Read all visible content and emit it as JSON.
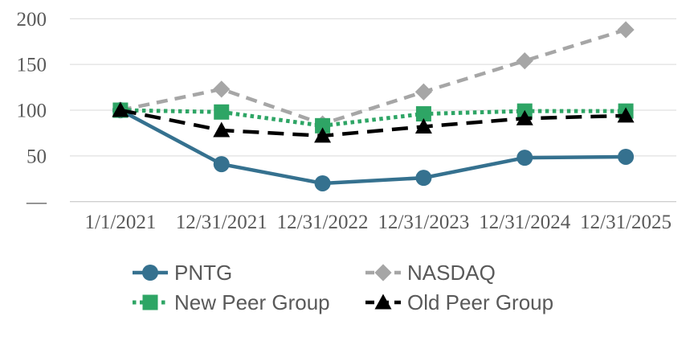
{
  "chart_data": {
    "type": "line",
    "title": "",
    "xlabel": "",
    "ylabel": "",
    "categories": [
      "1/1/2021",
      "12/31/2021",
      "12/31/2022",
      "12/31/2023",
      "12/31/2024",
      "12/31/2025"
    ],
    "series": [
      {
        "name": "PNTG",
        "color": "#35718F",
        "marker": "circle",
        "line_style": "solid",
        "values": [
          100,
          41,
          20,
          26,
          48,
          49
        ]
      },
      {
        "name": "NASDAQ",
        "color": "#A6A6A6",
        "marker": "diamond",
        "line_style": "dashed",
        "values": [
          100,
          123,
          85,
          120,
          154,
          188
        ]
      },
      {
        "name": "New Peer Group",
        "color": "#2EA565",
        "marker": "square",
        "line_style": "dotted",
        "values": [
          100,
          98,
          83,
          96,
          99,
          99
        ]
      },
      {
        "name": "Old Peer Group",
        "color": "#000000",
        "marker": "triangle",
        "line_style": "long_dash",
        "values": [
          100,
          78,
          72,
          82,
          91,
          94
        ]
      }
    ],
    "y_axis": {
      "min": 0,
      "max": 200,
      "tick_interval": 50,
      "ticks": [
        {
          "value": 200,
          "label": "200"
        },
        {
          "value": 150,
          "label": "150"
        },
        {
          "value": 100,
          "label": "100"
        },
        {
          "value": 50,
          "label": "50"
        },
        {
          "value": 0,
          "label": "—"
        }
      ]
    },
    "grid": {
      "show": true,
      "line_color": "#D9D9D9"
    },
    "legend": {
      "position": "bottom",
      "columns": 2,
      "order": [
        "PNTG",
        "NASDAQ",
        "New Peer Group",
        "Old Peer Group"
      ]
    },
    "colors": {
      "axis_text": "#595959",
      "legend_text": "#595959",
      "axis_line": "#BFBFBF",
      "background": "#FFFFFF"
    }
  }
}
